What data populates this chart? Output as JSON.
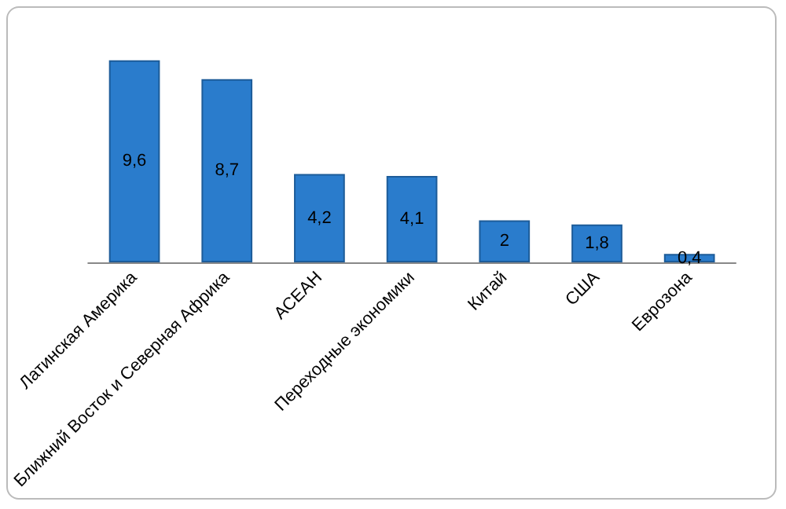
{
  "chart_data": {
    "type": "bar",
    "categories": [
      "Латинская Америка",
      "Ближний Восток и Северная Африка",
      "АСЕАН",
      "Переходные экономики",
      "Китай",
      "США",
      "Еврозона"
    ],
    "values": [
      9.6,
      8.7,
      4.2,
      4.1,
      2,
      1.8,
      0.4
    ],
    "value_labels": [
      "9,6",
      "8,7",
      "4,2",
      "4,1",
      "2",
      "1,8",
      "0,4"
    ],
    "color": "#2a7ccc"
  }
}
